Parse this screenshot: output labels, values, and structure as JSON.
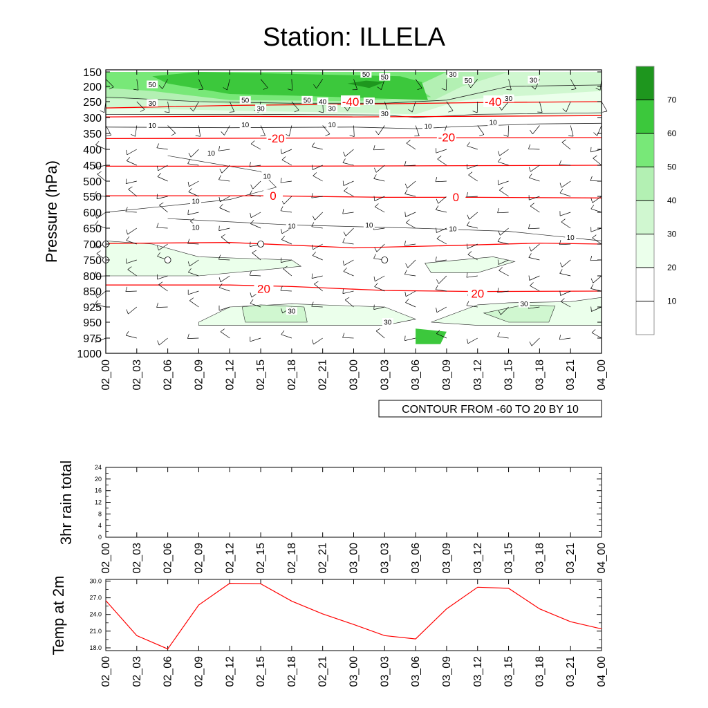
{
  "title": "Station: ILLELA",
  "time_labels": [
    "02_00",
    "02_03",
    "02_06",
    "02_09",
    "02_12",
    "02_15",
    "02_18",
    "02_21",
    "03_00",
    "03_03",
    "03_06",
    "03_09",
    "03_12",
    "03_15",
    "03_18",
    "03_21",
    "04_00"
  ],
  "chart_data": [
    {
      "type": "heatmap",
      "subtype": "time-pressure cross section",
      "ylabel": "Pressure (hPa)",
      "y_ticks": [
        "150",
        "200",
        "250",
        "300",
        "350",
        "400",
        "450",
        "500",
        "550",
        "600",
        "650",
        "700",
        "750",
        "800",
        "850",
        "925",
        "950",
        "975",
        "1000"
      ],
      "x_ticks_ref": "time_labels",
      "shading": "wind speed",
      "colorbar": {
        "labels": [
          "10",
          "20",
          "30",
          "40",
          "50",
          "60",
          "70"
        ],
        "colors": [
          "#ffffff",
          "#ffffff",
          "#ebffeb",
          "#d0f7d0",
          "#b3f0b3",
          "#78e878",
          "#3cc83c",
          "#1e961e"
        ]
      },
      "info_label": "CONTOUR FROM -60 TO 20 BY 10",
      "temperature_contours": {
        "color": "#ff0000",
        "levels": [
          -40,
          -20,
          0,
          20
        ],
        "labels": [
          {
            "text": "-40",
            "t": 7.9,
            "p": 250
          },
          {
            "text": "-40",
            "t": 12.5,
            "p": 250
          },
          {
            "text": "-20",
            "t": 5.5,
            "p": 365
          },
          {
            "text": "-20",
            "t": 11.0,
            "p": 362
          },
          {
            "text": "0",
            "t": 5.4,
            "p": 548
          },
          {
            "text": "0",
            "t": 11.3,
            "p": 552
          },
          {
            "text": "20",
            "t": 5.1,
            "p": 842
          },
          {
            "text": "20",
            "t": 12.0,
            "p": 862
          }
        ]
      },
      "speed_labels": [
        {
          "text": "50",
          "t": 1.5,
          "p": 194
        },
        {
          "text": "30",
          "t": 1.5,
          "p": 255
        },
        {
          "text": "10",
          "t": 1.5,
          "p": 325
        },
        {
          "text": "50",
          "t": 4.5,
          "p": 246
        },
        {
          "text": "30",
          "t": 5.0,
          "p": 272
        },
        {
          "text": "10",
          "t": 4.5,
          "p": 323
        },
        {
          "text": "50",
          "t": 6.5,
          "p": 245
        },
        {
          "text": "40",
          "t": 7.0,
          "p": 250
        },
        {
          "text": "30",
          "t": 7.3,
          "p": 272
        },
        {
          "text": "10",
          "t": 7.3,
          "p": 323
        },
        {
          "text": "50",
          "t": 8.4,
          "p": 158
        },
        {
          "text": "50",
          "t": 9.0,
          "p": 168
        },
        {
          "text": "50",
          "t": 8.5,
          "p": 250
        },
        {
          "text": "30",
          "t": 9.0,
          "p": 288
        },
        {
          "text": "10",
          "t": 10.4,
          "p": 327
        },
        {
          "text": "30",
          "t": 11.2,
          "p": 158
        },
        {
          "text": "50",
          "t": 11.7,
          "p": 180
        },
        {
          "text": "30",
          "t": 13.8,
          "p": 178
        },
        {
          "text": "10",
          "t": 12.5,
          "p": 315
        },
        {
          "text": "30",
          "t": 13.0,
          "p": 240
        },
        {
          "text": "10",
          "t": 3.4,
          "p": 412
        },
        {
          "text": "10",
          "t": 5.2,
          "p": 485
        },
        {
          "text": "10",
          "t": 2.9,
          "p": 565
        },
        {
          "text": "10",
          "t": 2.9,
          "p": 648
        },
        {
          "text": "10",
          "t": 6.0,
          "p": 643
        },
        {
          "text": "10",
          "t": 8.5,
          "p": 640
        },
        {
          "text": "10",
          "t": 11.2,
          "p": 652
        },
        {
          "text": "10",
          "t": 15.0,
          "p": 679
        },
        {
          "text": "30",
          "t": 6.0,
          "p": 932
        },
        {
          "text": "30",
          "t": 9.1,
          "p": 950
        },
        {
          "text": "30",
          "t": 13.5,
          "p": 911
        }
      ]
    },
    {
      "type": "line",
      "ylabel": "3hr rain total",
      "y_ticks": [
        "0",
        "4",
        "8",
        "12",
        "16",
        "20",
        "24"
      ],
      "ylim": [
        0,
        24
      ],
      "x_ticks_ref": "time_labels",
      "values": []
    },
    {
      "type": "line",
      "ylabel": "Temp at 2m",
      "y_ticks": [
        "18.0",
        "21.0",
        "24.0",
        "27.0",
        "30.0"
      ],
      "ylim": [
        17.5,
        30.3
      ],
      "line_color": "#ff0000",
      "x_ticks_ref": "time_labels",
      "x": [
        "02_00",
        "02_03",
        "02_06",
        "02_09",
        "02_12",
        "02_15",
        "02_18",
        "02_21",
        "03_00",
        "03_03",
        "03_06",
        "03_09",
        "03_12",
        "03_15",
        "03_18",
        "03_21",
        "04_00"
      ],
      "values": [
        26.5,
        20.2,
        17.8,
        25.7,
        29.6,
        29.5,
        26.4,
        24.1,
        22.2,
        20.2,
        19.6,
        25.0,
        28.9,
        28.7,
        25.0,
        22.7,
        21.4
      ]
    }
  ]
}
